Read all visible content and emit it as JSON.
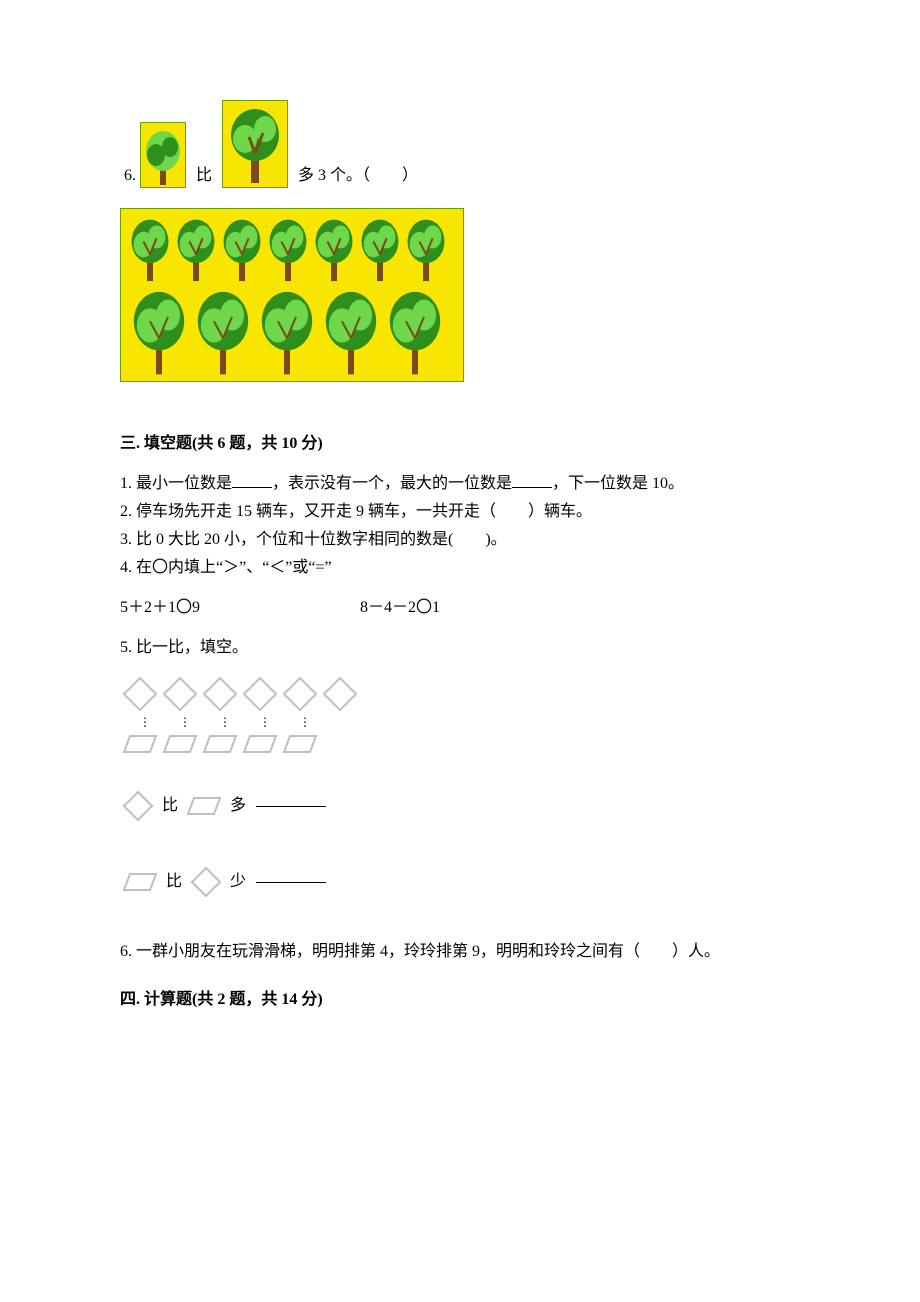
{
  "colors": {
    "panel_bg": "#f8e600",
    "panel_border": "#6aa000",
    "tree_leaf_light": "#6fd84a",
    "tree_leaf_dark": "#2e8f1d",
    "tree_trunk": "#7a4a1d",
    "outline_gray": "#bfbfbf",
    "outline_gray_dark": "#a0a0a0",
    "text": "#000000"
  },
  "q6": {
    "prefix": "6.",
    "mid1": "比",
    "mid2": "多 3 个。（　　）"
  },
  "tree_panel": {
    "row1_count": 7,
    "row2_count": 5
  },
  "section3": {
    "title": "三. 填空题(共 6 题，共 10 分)",
    "q1": "1. 最小一位数是",
    "q1b": "，表示没有一个，最大的一位数是",
    "q1c": "，下一位数是 10。",
    "q2": "2. 停车场先开走 15 辆车，又开走 9 辆车，一共开走（　　）辆车。",
    "q3": "3. 比 0 大比 20 小，个位和十位数字相同的数是(　　)。",
    "q4": "4. 在〇内填上“＞”、“＜”或“=”",
    "q4a": "5＋2＋1〇9",
    "q4b": "8－4－2〇1",
    "q5": "5. 比一比，填空。",
    "diamonds_count": 6,
    "dots_count": 5,
    "trapezoids_count": 5,
    "compare1_a": "比",
    "compare1_b": "多",
    "compare2_a": "比",
    "compare2_b": "少",
    "q6": "6. 一群小朋友在玩滑滑梯，明明排第 4，玲玲排第 9，明明和玲玲之间有（　　）人。"
  },
  "section4": {
    "title": "四. 计算题(共 2 题，共 14 分)"
  }
}
